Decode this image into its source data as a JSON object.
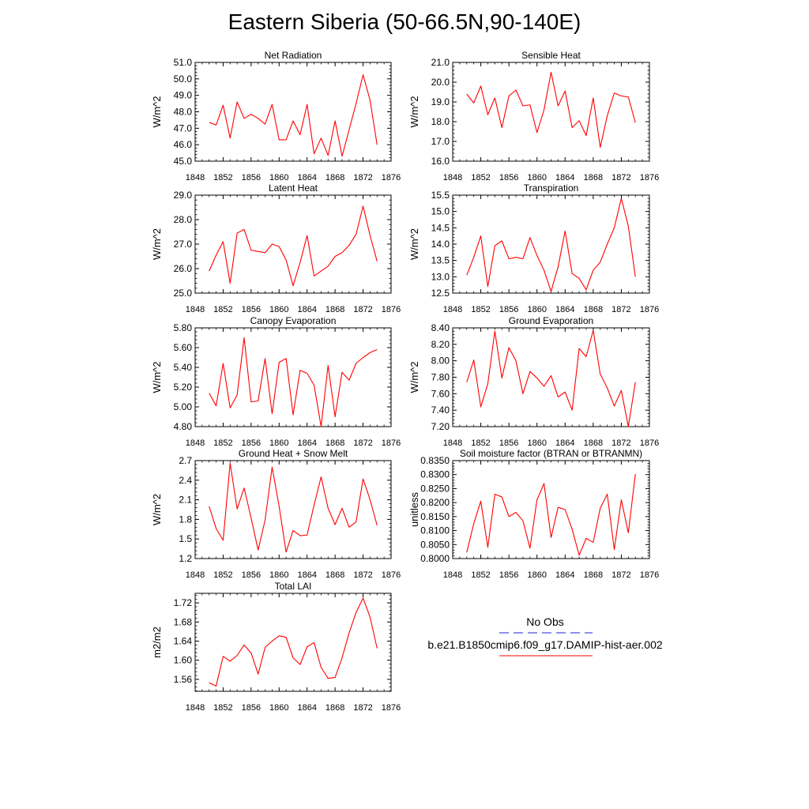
{
  "title": "Eastern Siberia (50-66.5N,90-140E)",
  "legend": {
    "obs_label": "No Obs",
    "obs_color": "#2222cc",
    "model_label": "b.e21.B1850cmip6.f09_g17.DAMIP-hist-aer.002",
    "model_color": "#ff0000"
  },
  "chart_data": [
    {
      "type": "line",
      "title": "Net Radiation",
      "ylabel": "W/m^2",
      "xlim": [
        1848,
        1876
      ],
      "xticks": [
        "1848",
        "1852",
        "1856",
        "1860",
        "1864",
        "1868",
        "1872",
        "1876"
      ],
      "ylim": [
        45,
        51
      ],
      "yticks": [
        "45.0",
        "46.0",
        "47.0",
        "48.0",
        "49.0",
        "50.0",
        "51.0"
      ],
      "x": [
        1850,
        1851,
        1852,
        1853,
        1854,
        1855,
        1856,
        1857,
        1858,
        1859,
        1860,
        1861,
        1862,
        1863,
        1864,
        1865,
        1866,
        1867,
        1868,
        1869,
        1870,
        1871,
        1872,
        1873,
        1874
      ],
      "series": [
        {
          "values": [
            47.35,
            47.2,
            48.4,
            46.4,
            48.6,
            47.6,
            47.85,
            47.6,
            47.25,
            48.45,
            46.3,
            46.3,
            47.45,
            46.6,
            48.45,
            45.45,
            46.4,
            45.35,
            47.45,
            45.3,
            46.9,
            48.5,
            50.25,
            48.7,
            46.0
          ]
        }
      ]
    },
    {
      "type": "line",
      "title": "Sensible Heat",
      "ylabel": "W/m^2",
      "xlim": [
        1848,
        1876
      ],
      "xticks": [
        "1848",
        "1852",
        "1856",
        "1860",
        "1864",
        "1868",
        "1872",
        "1876"
      ],
      "ylim": [
        16,
        21
      ],
      "yticks": [
        "16.0",
        "17.0",
        "18.0",
        "19.0",
        "20.0",
        "21.0"
      ],
      "x": [
        1850,
        1851,
        1852,
        1853,
        1854,
        1855,
        1856,
        1857,
        1858,
        1859,
        1860,
        1861,
        1862,
        1863,
        1864,
        1865,
        1866,
        1867,
        1868,
        1869,
        1870,
        1871,
        1872,
        1873,
        1874
      ],
      "series": [
        {
          "values": [
            19.4,
            18.95,
            19.8,
            18.35,
            19.2,
            17.7,
            19.3,
            19.6,
            18.8,
            18.85,
            17.45,
            18.6,
            20.5,
            18.8,
            19.55,
            17.7,
            18.05,
            17.3,
            19.2,
            16.7,
            18.3,
            19.45,
            19.3,
            19.25,
            17.95
          ]
        }
      ]
    },
    {
      "type": "line",
      "title": "Latent Heat",
      "ylabel": "W/m^2",
      "xlim": [
        1848,
        1876
      ],
      "xticks": [
        "1848",
        "1852",
        "1856",
        "1860",
        "1864",
        "1868",
        "1872",
        "1876"
      ],
      "ylim": [
        25,
        29
      ],
      "yticks": [
        "25.0",
        "26.0",
        "27.0",
        "28.0",
        "29.0"
      ],
      "x": [
        1850,
        1851,
        1852,
        1853,
        1854,
        1855,
        1856,
        1857,
        1858,
        1859,
        1860,
        1861,
        1862,
        1863,
        1864,
        1865,
        1866,
        1867,
        1868,
        1869,
        1870,
        1871,
        1872,
        1873,
        1874
      ],
      "series": [
        {
          "values": [
            25.9,
            26.55,
            27.1,
            25.4,
            27.45,
            27.6,
            26.75,
            26.7,
            26.65,
            27.0,
            26.9,
            26.35,
            25.3,
            26.25,
            27.35,
            25.7,
            25.9,
            26.1,
            26.5,
            26.65,
            26.95,
            27.4,
            28.55,
            27.35,
            26.3
          ]
        }
      ]
    },
    {
      "type": "line",
      "title": "Transpiration",
      "ylabel": "W/m^2",
      "xlim": [
        1848,
        1876
      ],
      "xticks": [
        "1848",
        "1852",
        "1856",
        "1860",
        "1864",
        "1868",
        "1872",
        "1876"
      ],
      "ylim": [
        12.5,
        15.5
      ],
      "yticks": [
        "12.5",
        "13.0",
        "13.5",
        "14.0",
        "14.5",
        "15.0",
        "15.5"
      ],
      "x": [
        1850,
        1851,
        1852,
        1853,
        1854,
        1855,
        1856,
        1857,
        1858,
        1859,
        1860,
        1861,
        1862,
        1863,
        1864,
        1865,
        1866,
        1867,
        1868,
        1869,
        1870,
        1871,
        1872,
        1873,
        1874
      ],
      "series": [
        {
          "values": [
            13.05,
            13.6,
            14.25,
            12.7,
            13.95,
            14.1,
            13.55,
            13.6,
            13.55,
            14.2,
            13.65,
            13.2,
            12.55,
            13.3,
            14.4,
            13.1,
            12.95,
            12.6,
            13.2,
            13.45,
            14.0,
            14.5,
            15.4,
            14.55,
            13.0
          ]
        }
      ]
    },
    {
      "type": "line",
      "title": "Canopy Evaporation",
      "ylabel": "W/m^2",
      "xlim": [
        1848,
        1876
      ],
      "xticks": [
        "1848",
        "1852",
        "1856",
        "1860",
        "1864",
        "1868",
        "1872",
        "1876"
      ],
      "ylim": [
        4.8,
        5.8
      ],
      "yticks": [
        "4.80",
        "5.00",
        "5.20",
        "5.40",
        "5.60",
        "5.80"
      ],
      "x": [
        1850,
        1851,
        1852,
        1853,
        1854,
        1855,
        1856,
        1857,
        1858,
        1859,
        1860,
        1861,
        1862,
        1863,
        1864,
        1865,
        1866,
        1867,
        1868,
        1869,
        1870,
        1871,
        1872,
        1873,
        1874
      ],
      "series": [
        {
          "values": [
            5.14,
            5.01,
            5.44,
            4.99,
            5.12,
            5.7,
            5.05,
            5.06,
            5.49,
            4.93,
            5.45,
            5.49,
            4.92,
            5.37,
            5.34,
            5.22,
            4.8,
            5.42,
            4.9,
            5.35,
            5.27,
            5.44,
            5.5,
            5.55,
            5.58
          ]
        }
      ]
    },
    {
      "type": "line",
      "title": "Ground Evaporation",
      "ylabel": "W/m^2",
      "xlim": [
        1848,
        1876
      ],
      "xticks": [
        "1848",
        "1852",
        "1856",
        "1860",
        "1864",
        "1868",
        "1872",
        "1876"
      ],
      "ylim": [
        7.2,
        8.4
      ],
      "yticks": [
        "7.20",
        "7.40",
        "7.60",
        "7.80",
        "8.00",
        "8.20",
        "8.40"
      ],
      "x": [
        1850,
        1851,
        1852,
        1853,
        1854,
        1855,
        1856,
        1857,
        1858,
        1859,
        1860,
        1861,
        1862,
        1863,
        1864,
        1865,
        1866,
        1867,
        1868,
        1869,
        1870,
        1871,
        1872,
        1873,
        1874
      ],
      "series": [
        {
          "values": [
            7.74,
            8.01,
            7.44,
            7.72,
            8.36,
            7.79,
            8.16,
            8.0,
            7.6,
            7.87,
            7.79,
            7.69,
            7.82,
            7.56,
            7.62,
            7.4,
            8.15,
            8.05,
            8.37,
            7.84,
            7.67,
            7.45,
            7.64,
            7.2,
            7.74
          ]
        }
      ]
    },
    {
      "type": "line",
      "title": "Ground Heat + Snow Melt",
      "ylabel": "W/m^2",
      "xlim": [
        1848,
        1876
      ],
      "xticks": [
        "1848",
        "1852",
        "1856",
        "1860",
        "1864",
        "1868",
        "1872",
        "1876"
      ],
      "ylim": [
        1.2,
        2.7
      ],
      "yticks": [
        "1.2",
        "1.5",
        "1.8",
        "2.1",
        "2.4",
        "2.7"
      ],
      "x": [
        1850,
        1851,
        1852,
        1853,
        1854,
        1855,
        1856,
        1857,
        1858,
        1859,
        1860,
        1861,
        1862,
        1863,
        1864,
        1865,
        1866,
        1867,
        1868,
        1869,
        1870,
        1871,
        1872,
        1873,
        1874
      ],
      "series": [
        {
          "values": [
            2.0,
            1.66,
            1.48,
            2.66,
            1.96,
            2.28,
            1.82,
            1.33,
            1.79,
            2.6,
            2.0,
            1.3,
            1.63,
            1.55,
            1.56,
            2.02,
            2.45,
            1.97,
            1.72,
            1.97,
            1.68,
            1.76,
            2.42,
            2.1,
            1.71
          ]
        }
      ]
    },
    {
      "type": "line",
      "title": "Soil moisture factor (BTRAN or BTRANMN)",
      "ylabel": "unitless",
      "xlim": [
        1848,
        1876
      ],
      "xticks": [
        "1848",
        "1852",
        "1856",
        "1860",
        "1864",
        "1868",
        "1872",
        "1876"
      ],
      "ylim": [
        0.8,
        0.835
      ],
      "yticks": [
        "0.8000",
        "0.8050",
        "0.8100",
        "0.8150",
        "0.8200",
        "0.8250",
        "0.8300",
        "0.8350"
      ],
      "x": [
        1850,
        1851,
        1852,
        1853,
        1854,
        1855,
        1856,
        1857,
        1858,
        1859,
        1860,
        1861,
        1862,
        1863,
        1864,
        1865,
        1866,
        1867,
        1868,
        1869,
        1870,
        1871,
        1872,
        1873,
        1874
      ],
      "series": [
        {
          "values": [
            0.8022,
            0.8125,
            0.8205,
            0.804,
            0.823,
            0.822,
            0.815,
            0.8165,
            0.8135,
            0.8037,
            0.821,
            0.8268,
            0.8075,
            0.8183,
            0.8175,
            0.8105,
            0.8012,
            0.8072,
            0.8058,
            0.818,
            0.823,
            0.8032,
            0.821,
            0.8092,
            0.8302
          ]
        }
      ]
    },
    {
      "type": "line",
      "title": "Total LAI",
      "ylabel": "m2/m2",
      "xlim": [
        1848,
        1876
      ],
      "xticks": [
        "1848",
        "1852",
        "1856",
        "1860",
        "1864",
        "1868",
        "1872",
        "1876"
      ],
      "ylim": [
        1.535,
        1.74
      ],
      "yticks": [
        "1.56",
        "1.60",
        "1.64",
        "1.68",
        "1.72"
      ],
      "x": [
        1850,
        1851,
        1852,
        1853,
        1854,
        1855,
        1856,
        1857,
        1858,
        1859,
        1860,
        1861,
        1862,
        1863,
        1864,
        1865,
        1866,
        1867,
        1868,
        1869,
        1870,
        1871,
        1872,
        1873,
        1874
      ],
      "series": [
        {
          "values": [
            1.553,
            1.546,
            1.608,
            1.598,
            1.61,
            1.632,
            1.615,
            1.571,
            1.627,
            1.64,
            1.651,
            1.648,
            1.605,
            1.591,
            1.628,
            1.637,
            1.585,
            1.562,
            1.564,
            1.605,
            1.657,
            1.7,
            1.73,
            1.69,
            1.625
          ]
        }
      ]
    }
  ]
}
